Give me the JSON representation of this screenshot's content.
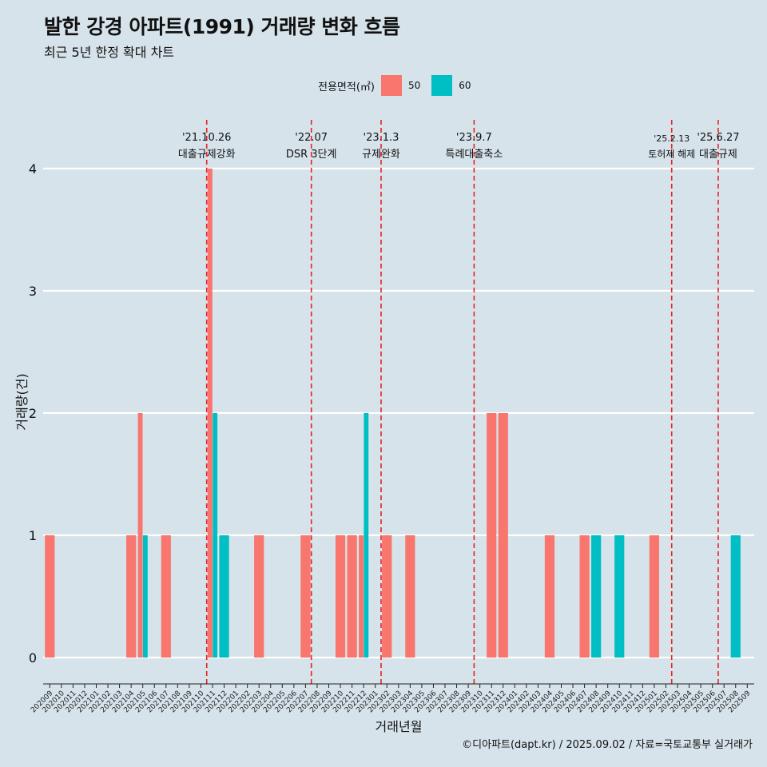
{
  "header": {
    "title": "발한 강경 아파트(1991) 거래량 변화 흐름",
    "subtitle": "최근 5년 한정 확대 차트"
  },
  "legend": {
    "title": "전용면적(㎡)",
    "items": [
      {
        "label": "50",
        "color": "#f8766d"
      },
      {
        "label": "60",
        "color": "#00bfc4"
      }
    ]
  },
  "caption": "©디아파트(dapt.kr) / 2025.09.02 / 자료=국토교통부 실거래가",
  "chart_data": {
    "type": "bar",
    "xlabel": "거래년월",
    "ylabel": "거래량(건)",
    "ylim": [
      0,
      4
    ],
    "yticks": [
      0,
      1,
      2,
      3,
      4
    ],
    "grid": true,
    "legend_position": "top",
    "categories": [
      "202009",
      "202010",
      "202011",
      "202012",
      "202101",
      "202102",
      "202103",
      "202104",
      "202105",
      "202106",
      "202107",
      "202108",
      "202109",
      "202110",
      "202111",
      "202112",
      "202201",
      "202202",
      "202203",
      "202204",
      "202205",
      "202206",
      "202207",
      "202208",
      "202209",
      "202210",
      "202211",
      "202212",
      "202301",
      "202302",
      "202303",
      "202304",
      "202305",
      "202306",
      "202307",
      "202308",
      "202309",
      "202310",
      "202311",
      "202312",
      "202401",
      "202402",
      "202403",
      "202404",
      "202405",
      "202406",
      "202407",
      "202408",
      "202409",
      "202410",
      "202411",
      "202412",
      "202501",
      "202502",
      "202503",
      "202504",
      "202505",
      "202506",
      "202507",
      "202508",
      "202509"
    ],
    "series": [
      {
        "name": "50",
        "color": "#f8766d",
        "points": [
          {
            "x": "202009",
            "y": 1
          },
          {
            "x": "202104",
            "y": 1
          },
          {
            "x": "202105",
            "y": 2
          },
          {
            "x": "202107",
            "y": 1
          },
          {
            "x": "202111",
            "y": 4
          },
          {
            "x": "202203",
            "y": 1
          },
          {
            "x": "202207",
            "y": 1
          },
          {
            "x": "202210",
            "y": 1
          },
          {
            "x": "202211",
            "y": 1
          },
          {
            "x": "202212",
            "y": 1
          },
          {
            "x": "202302",
            "y": 1
          },
          {
            "x": "202304",
            "y": 1
          },
          {
            "x": "202311",
            "y": 2
          },
          {
            "x": "202312",
            "y": 2
          },
          {
            "x": "202404",
            "y": 1
          },
          {
            "x": "202407",
            "y": 1
          },
          {
            "x": "202501",
            "y": 1
          }
        ]
      },
      {
        "name": "60",
        "color": "#00bfc4",
        "points": [
          {
            "x": "202105",
            "y": 1
          },
          {
            "x": "202111",
            "y": 2
          },
          {
            "x": "202112",
            "y": 1
          },
          {
            "x": "202212",
            "y": 2
          },
          {
            "x": "202408",
            "y": 1
          },
          {
            "x": "202410",
            "y": 1
          },
          {
            "x": "202508",
            "y": 1
          }
        ]
      }
    ],
    "annotations": [
      {
        "date": "'21.10.26",
        "label": "대출규제강화",
        "pos": 13.5
      },
      {
        "date": "'22.07",
        "label": "DSR 3단계",
        "pos": 22.5
      },
      {
        "date": "'23.1.3",
        "label": "규제완화",
        "pos": 28.5
      },
      {
        "date": "'23.9.7",
        "label": "특례대출축소",
        "pos": 36.5
      },
      {
        "date": "'25.2.13",
        "label": "토허제 해제",
        "pos": 53.5
      },
      {
        "date": "'25.6.27",
        "label": "대출규제",
        "pos": 57.5
      }
    ]
  }
}
